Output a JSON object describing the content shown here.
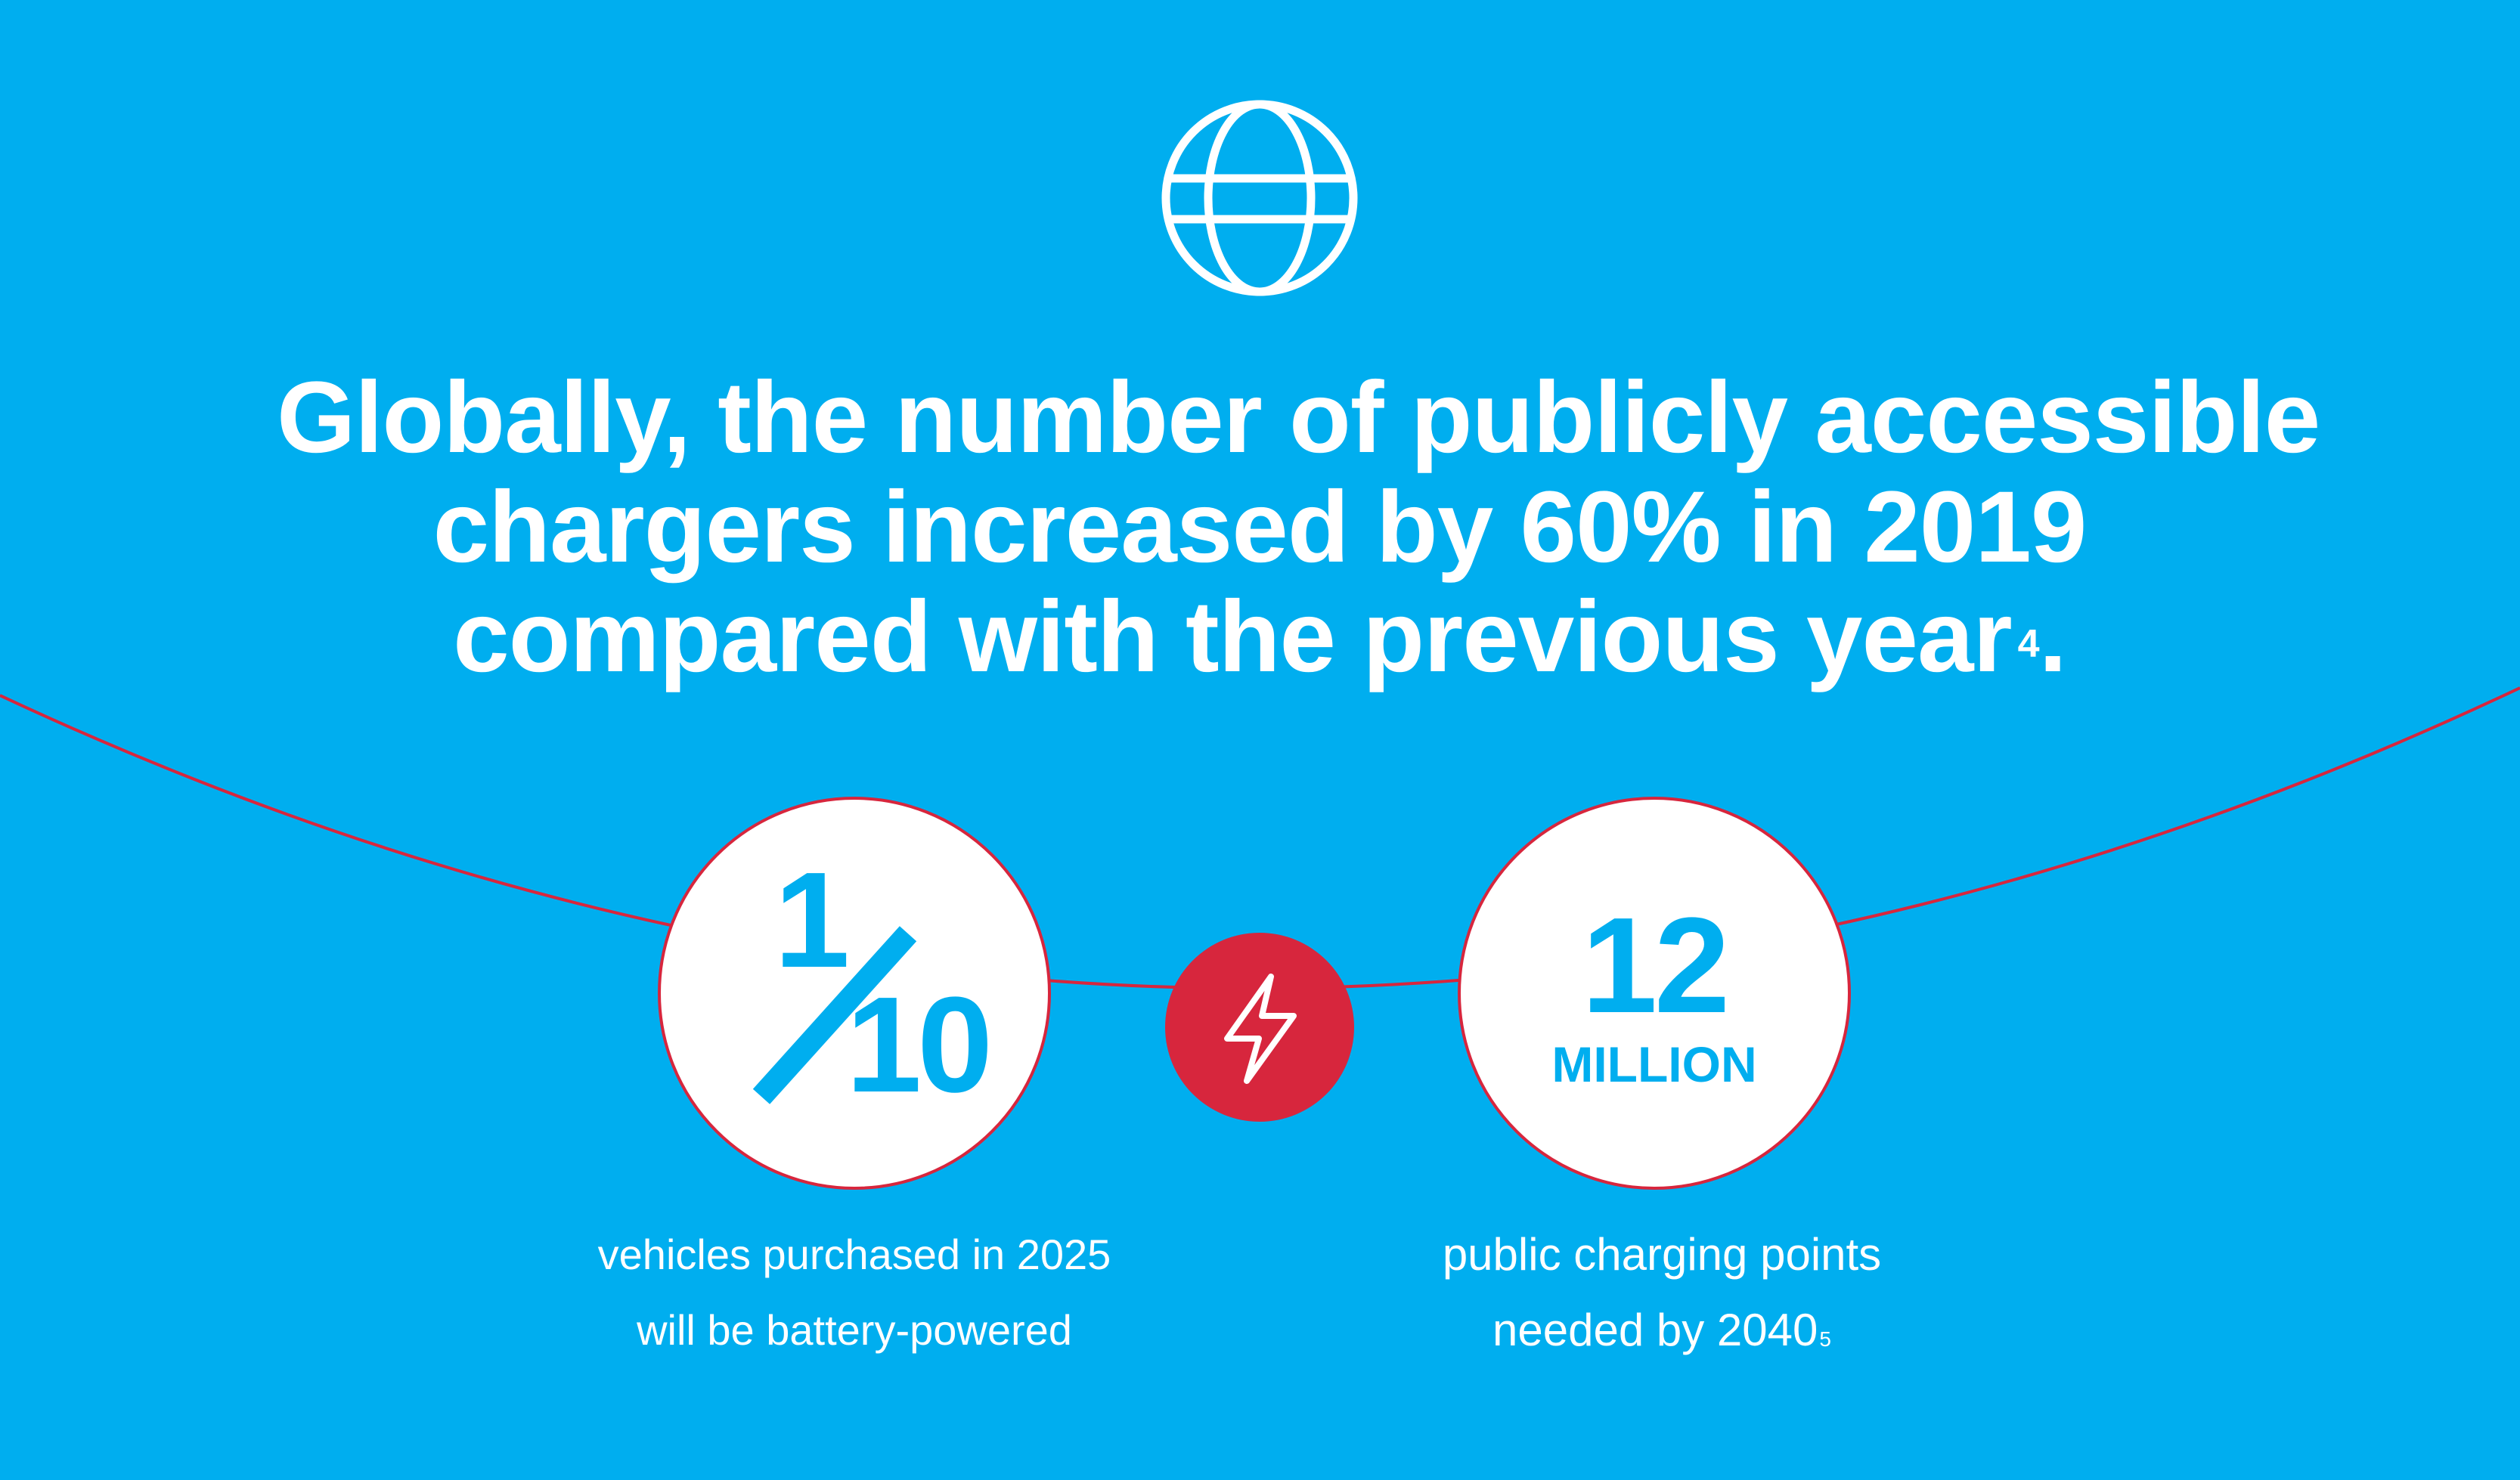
{
  "colors": {
    "background": "#00AEEF",
    "accent_red": "#D7263D",
    "white": "#ffffff",
    "stat_blue": "#00AEEF"
  },
  "icons": {
    "top": "globe-icon",
    "center": "lightning-bolt-icon"
  },
  "headline": {
    "line1": "Globally, the number of publicly accessible",
    "line2": "chargers increased by 60% in 2019",
    "line3": "compared with the previous year",
    "footnote": "4",
    "trailing": "."
  },
  "stat_left": {
    "numerator": "1",
    "denominator": "10",
    "caption_line1": "vehicles purchased in 2025",
    "caption_line2": "will be battery-powered"
  },
  "stat_right": {
    "number": "12",
    "unit": "MILLION",
    "caption_line1": "public charging points",
    "caption_line2": "needed by 2040",
    "footnote": "5"
  }
}
